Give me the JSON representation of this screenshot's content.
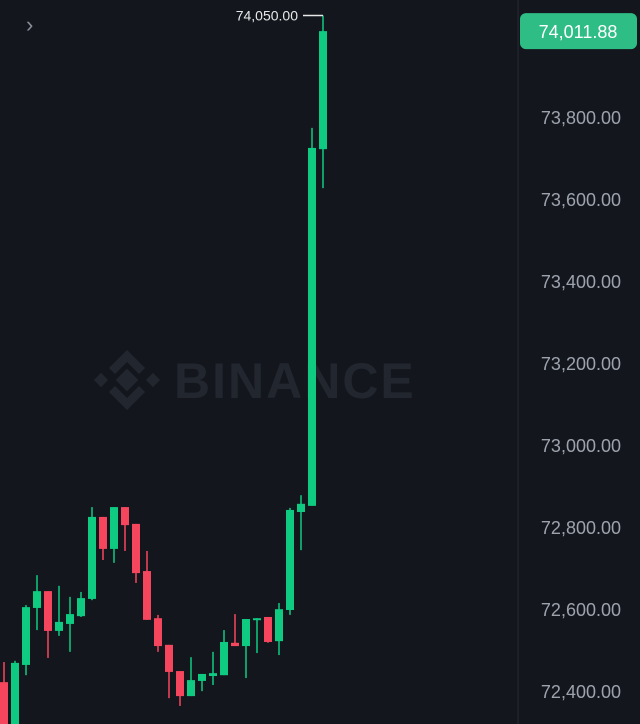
{
  "watermark": "BINANCE",
  "expand_icon": "chevron-right-icon",
  "colors": {
    "background": "#14161d",
    "up": "#0ecb81",
    "down": "#f6465d",
    "last_price_tag": "#2ebd85",
    "axis_text": "#9da3ad",
    "watermark": "#22262e"
  },
  "chart_data": {
    "type": "candlestick",
    "ylim": [
      72380,
      74100
    ],
    "y_ticks": [
      "72,400.00",
      "72,600.00",
      "72,800.00",
      "73,000.00",
      "73,200.00",
      "73,400.00",
      "73,600.00",
      "73,800.00"
    ],
    "y_tick_values": [
      72400,
      72600,
      72800,
      73000,
      73200,
      73400,
      73600,
      73800
    ],
    "last_price": 74011.88,
    "last_price_label": "74,011.88",
    "high_marker": 74050,
    "high_marker_label": "74,050.00",
    "candles": [
      {
        "o": 72424,
        "h": 72473,
        "l": 72283,
        "c": 72307
      },
      {
        "o": 72307,
        "h": 72476,
        "l": 72295,
        "c": 72471
      },
      {
        "o": 72466,
        "h": 72612,
        "l": 72441,
        "c": 72607
      },
      {
        "o": 72605,
        "h": 72685,
        "l": 72551,
        "c": 72646
      },
      {
        "o": 72646,
        "h": 72646,
        "l": 72483,
        "c": 72549
      },
      {
        "o": 72549,
        "h": 72659,
        "l": 72537,
        "c": 72571
      },
      {
        "o": 72566,
        "h": 72632,
        "l": 72498,
        "c": 72590
      },
      {
        "o": 72585,
        "h": 72644,
        "l": 72583,
        "c": 72629
      },
      {
        "o": 72627,
        "h": 72851,
        "l": 72624,
        "c": 72827
      },
      {
        "o": 72827,
        "h": 72827,
        "l": 72722,
        "c": 72749
      },
      {
        "o": 72749,
        "h": 72851,
        "l": 72715,
        "c": 72851
      },
      {
        "o": 72851,
        "h": 72851,
        "l": 72744,
        "c": 72807
      },
      {
        "o": 72810,
        "h": 72810,
        "l": 72666,
        "c": 72690
      },
      {
        "o": 72695,
        "h": 72744,
        "l": 72576,
        "c": 72576
      },
      {
        "o": 72580,
        "h": 72588,
        "l": 72498,
        "c": 72512
      },
      {
        "o": 72515,
        "h": 72515,
        "l": 72385,
        "c": 72449
      },
      {
        "o": 72451,
        "h": 72451,
        "l": 72366,
        "c": 72390
      },
      {
        "o": 72390,
        "h": 72485,
        "l": 72390,
        "c": 72429
      },
      {
        "o": 72427,
        "h": 72444,
        "l": 72402,
        "c": 72444
      },
      {
        "o": 72439,
        "h": 72498,
        "l": 72417,
        "c": 72446
      },
      {
        "o": 72441,
        "h": 72551,
        "l": 72441,
        "c": 72522
      },
      {
        "o": 72520,
        "h": 72590,
        "l": 72512,
        "c": 72512
      },
      {
        "o": 72512,
        "h": 72578,
        "l": 72434,
        "c": 72578
      },
      {
        "o": 72576,
        "h": 72580,
        "l": 72495,
        "c": 72580
      },
      {
        "o": 72583,
        "h": 72583,
        "l": 72520,
        "c": 72522
      },
      {
        "o": 72524,
        "h": 72617,
        "l": 72490,
        "c": 72602
      },
      {
        "o": 72600,
        "h": 72849,
        "l": 72588,
        "c": 72844
      },
      {
        "o": 72839,
        "h": 72880,
        "l": 72746,
        "c": 72859
      },
      {
        "o": 72854,
        "h": 73776,
        "l": 72854,
        "c": 73727
      },
      {
        "o": 73724,
        "h": 74050,
        "l": 73629,
        "c": 74011.88
      }
    ]
  }
}
